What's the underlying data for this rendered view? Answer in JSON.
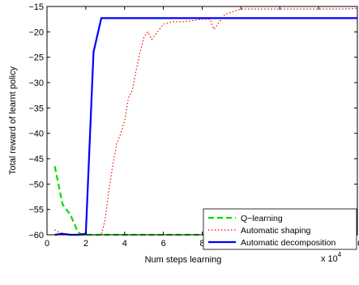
{
  "chart_data": {
    "type": "line",
    "title": "",
    "xlabel": "Num steps learning",
    "ylabel": "Total reward of learnt policy",
    "x_multiplier_label": "x 10",
    "x_multiplier_exponent": "4",
    "xlim": [
      0,
      16
    ],
    "ylim": [
      -60,
      -15
    ],
    "xticks": [
      0,
      2,
      4,
      6,
      8,
      10,
      12,
      14,
      16
    ],
    "yticks": [
      -60,
      -55,
      -50,
      -45,
      -40,
      -35,
      -30,
      -25,
      -20,
      -15
    ],
    "grid": false,
    "legend_position": "bottom-right",
    "series": [
      {
        "name": "Q−learning",
        "color": "#00dd00",
        "style": "dashed",
        "x": [
          0.4,
          0.8,
          1.2,
          1.6,
          1.8,
          2.0,
          4,
          8,
          12,
          16
        ],
        "y": [
          -46.5,
          -54.0,
          -56.0,
          -59.5,
          -60.0,
          -60.0,
          -60.0,
          -60.0,
          -60.0,
          -60.0
        ]
      },
      {
        "name": "Automatic shaping",
        "color": "#ff0000",
        "style": "dotted",
        "x": [
          0.4,
          0.6,
          1.0,
          2.0,
          2.4,
          2.8,
          3.0,
          3.2,
          3.4,
          3.6,
          3.8,
          4.0,
          4.2,
          4.4,
          4.6,
          4.8,
          5.0,
          5.2,
          5.4,
          5.6,
          5.8,
          6.0,
          6.5,
          7.0,
          7.5,
          8.0,
          8.4,
          8.6,
          8.8,
          9.0,
          9.2,
          9.6,
          10.0,
          10.5,
          11,
          12,
          13,
          14,
          15,
          16
        ],
        "y": [
          -59.0,
          -59.5,
          -60.0,
          -60.0,
          -60.0,
          -60.0,
          -57.0,
          -51.0,
          -46.0,
          -42.0,
          -40.0,
          -37.5,
          -33.0,
          -31.5,
          -27.5,
          -24.0,
          -21.0,
          -20.0,
          -21.5,
          -20.5,
          -19.5,
          -18.5,
          -18.0,
          -18.0,
          -17.8,
          -17.5,
          -17.5,
          -19.5,
          -18.5,
          -17.5,
          -16.5,
          -16.0,
          -15.5,
          -15.5,
          -15.5,
          -15.5,
          -15.5,
          -15.5,
          -15.5,
          -15.4
        ]
      },
      {
        "name": "Automatic decomposition",
        "color": "#0000ff",
        "style": "solid",
        "x": [
          0.4,
          0.8,
          1.2,
          1.6,
          2.0,
          2.4,
          2.8,
          4,
          6,
          8,
          10,
          12,
          14,
          16
        ],
        "y": [
          -60.0,
          -59.8,
          -60.0,
          -60.0,
          -59.8,
          -24.0,
          -17.3,
          -17.3,
          -17.3,
          -17.3,
          -17.3,
          -17.3,
          -17.3,
          -17.3
        ]
      }
    ]
  }
}
